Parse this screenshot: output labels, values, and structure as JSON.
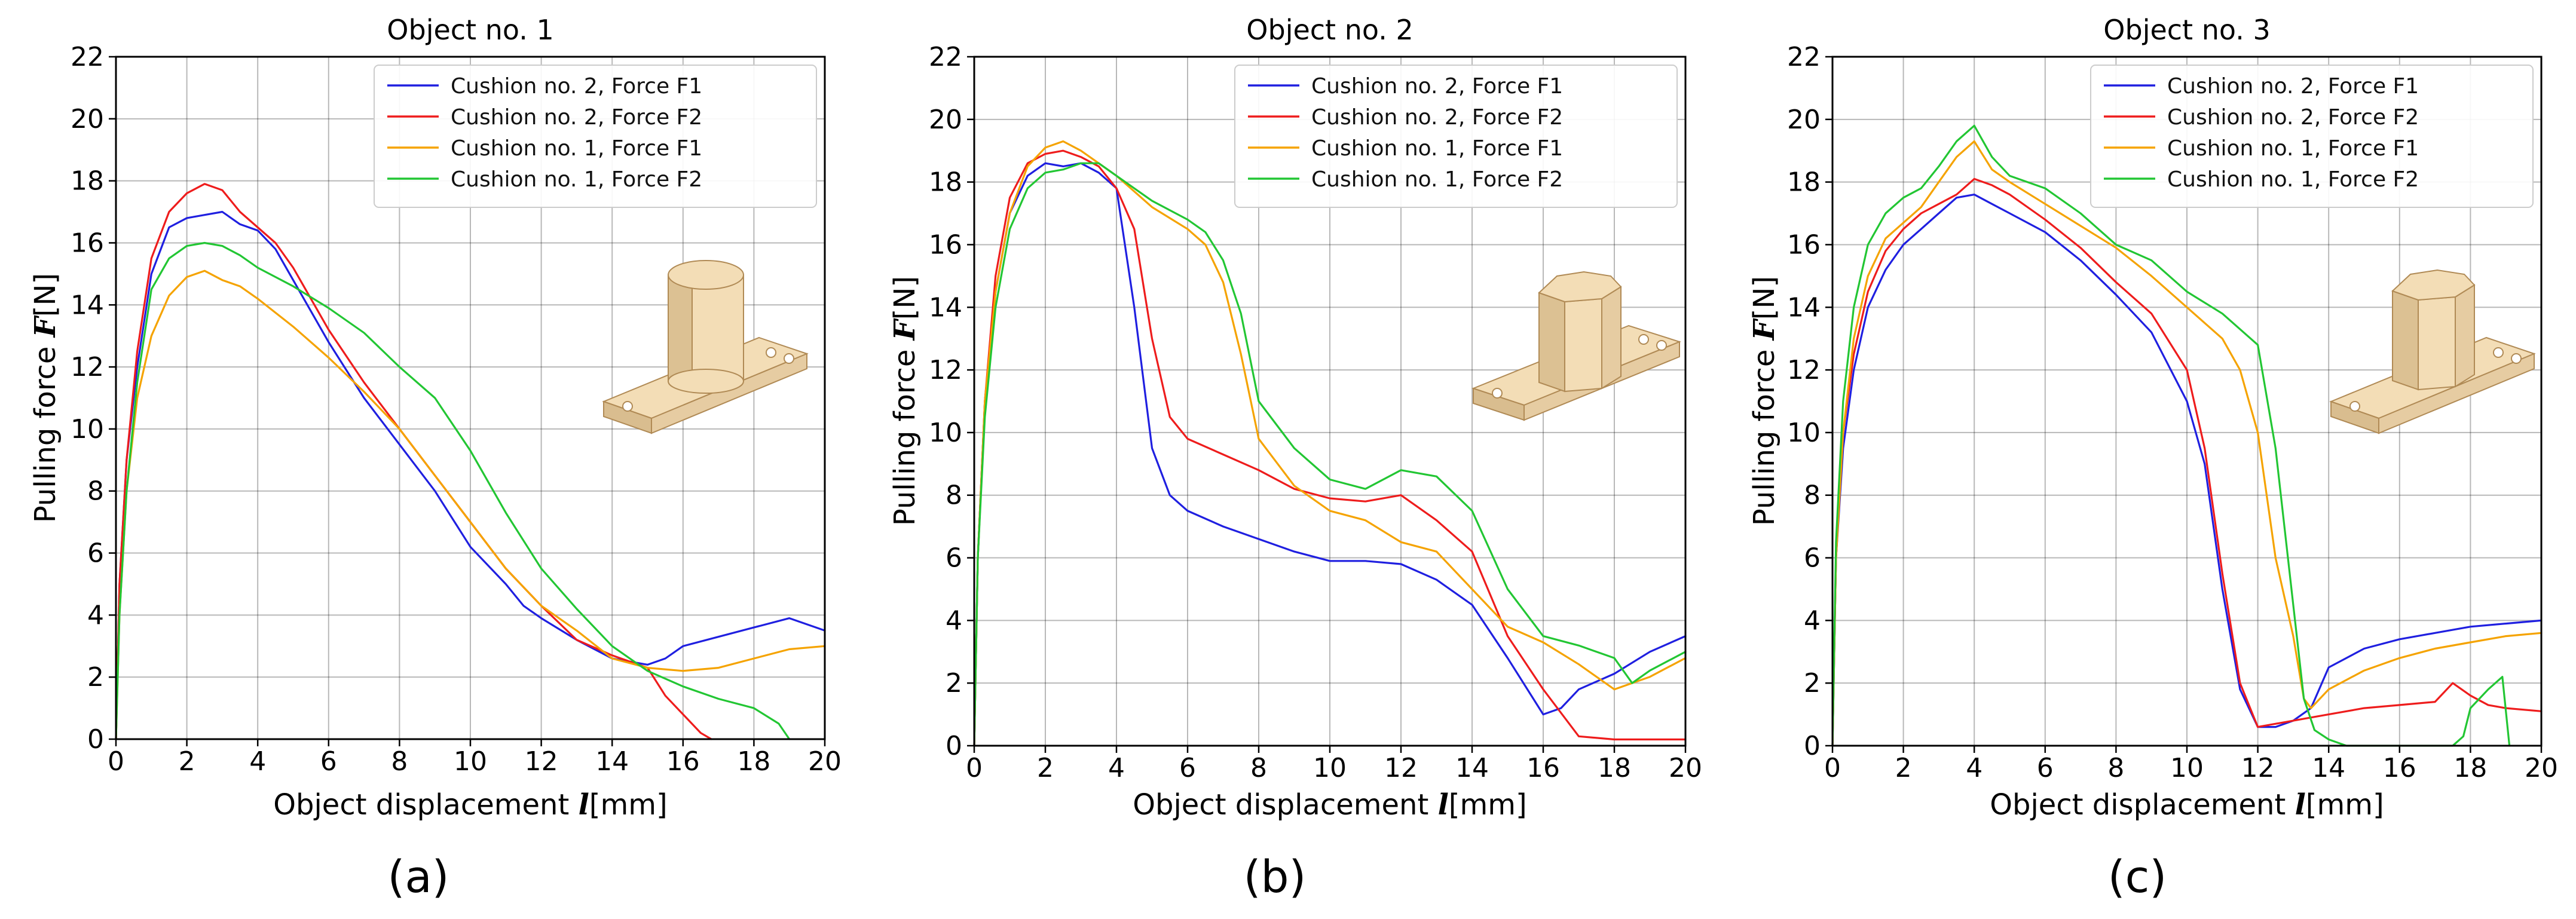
{
  "figure": {
    "captions": [
      "(a)",
      "(b)",
      "(c)"
    ]
  },
  "colors": {
    "blue": "#1f1fe0",
    "red": "#ee1c1c",
    "orange": "#f5a300",
    "green": "#22c633",
    "object_fill": "#f3ddb6",
    "object_stroke": "#b08a55"
  },
  "chart_data": [
    {
      "type": "line",
      "title": "Object no. 1",
      "xlabel": "Object displacement",
      "xvar": "l",
      "xunit": "[mm]",
      "ylabel": "Pulling force",
      "yvar": "F",
      "yunit": "[N]",
      "xlim": [
        0,
        20
      ],
      "ylim": [
        0,
        22
      ],
      "xticks": [
        0,
        2,
        4,
        6,
        8,
        10,
        12,
        14,
        16,
        18,
        20
      ],
      "yticks": [
        0,
        2,
        4,
        6,
        8,
        10,
        12,
        14,
        16,
        18,
        20,
        22
      ],
      "grid": true,
      "legend_position": "top-right",
      "object_icon": "cylinder-object-icon",
      "series": [
        {
          "name": "Cushion no. 2, Force F1",
          "color": "blue",
          "x": [
            0,
            0.1,
            0.3,
            0.6,
            1.0,
            1.5,
            2.0,
            2.5,
            3.0,
            3.5,
            4.0,
            4.5,
            5.0,
            6.0,
            7.0,
            8.0,
            9.0,
            10.0,
            11.0,
            11.5,
            12.0,
            13.0,
            14.0,
            15.0,
            15.5,
            16.0,
            17.0,
            18.0,
            19.0,
            20.0
          ],
          "y": [
            0,
            5,
            9,
            12,
            15,
            16.5,
            16.8,
            16.9,
            17.0,
            16.6,
            16.4,
            15.8,
            14.8,
            12.8,
            11.0,
            9.5,
            8.0,
            6.2,
            5.0,
            4.3,
            3.9,
            3.2,
            2.6,
            2.4,
            2.6,
            3.0,
            3.3,
            3.6,
            3.9,
            3.5
          ]
        },
        {
          "name": "Cushion no. 2, Force F2",
          "color": "red",
          "x": [
            0,
            0.1,
            0.3,
            0.6,
            1.0,
            1.5,
            2.0,
            2.5,
            3.0,
            3.5,
            4.0,
            4.5,
            5.0,
            6.0,
            7.0,
            8.0,
            9.0,
            10.0,
            11.0,
            12.0,
            13.0,
            14.0,
            15.0,
            15.5,
            16.0,
            16.5,
            16.8
          ],
          "y": [
            0,
            5,
            9,
            12.5,
            15.5,
            17.0,
            17.6,
            17.9,
            17.7,
            17.0,
            16.5,
            16.0,
            15.2,
            13.2,
            11.5,
            10.0,
            8.5,
            7.0,
            5.5,
            4.3,
            3.2,
            2.7,
            2.3,
            1.4,
            0.8,
            0.2,
            0
          ]
        },
        {
          "name": "Cushion no. 1, Force F1",
          "color": "orange",
          "x": [
            0,
            0.1,
            0.3,
            0.6,
            1.0,
            1.5,
            2.0,
            2.5,
            3.0,
            3.5,
            4.0,
            5.0,
            6.0,
            7.0,
            8.0,
            9.0,
            10.0,
            11.0,
            12.0,
            13.0,
            14.0,
            15.0,
            16.0,
            17.0,
            18.0,
            19.0,
            20.0
          ],
          "y": [
            0,
            4,
            8,
            11,
            13,
            14.3,
            14.9,
            15.1,
            14.8,
            14.6,
            14.2,
            13.3,
            12.3,
            11.2,
            10.0,
            8.5,
            7.0,
            5.5,
            4.3,
            3.5,
            2.6,
            2.3,
            2.2,
            2.3,
            2.6,
            2.9,
            3.0
          ]
        },
        {
          "name": "Cushion no. 1, Force F2",
          "color": "green",
          "x": [
            0,
            0.1,
            0.3,
            0.6,
            1.0,
            1.5,
            2.0,
            2.5,
            3.0,
            3.5,
            4.0,
            5.0,
            6.0,
            7.0,
            8.0,
            9.0,
            10.0,
            11.0,
            12.0,
            13.0,
            14.0,
            15.0,
            16.0,
            17.0,
            18.0,
            18.7,
            19.0
          ],
          "y": [
            0,
            4,
            8,
            11.5,
            14.5,
            15.5,
            15.9,
            16.0,
            15.9,
            15.6,
            15.2,
            14.6,
            13.9,
            13.1,
            12.0,
            11.0,
            9.3,
            7.3,
            5.5,
            4.2,
            3.0,
            2.2,
            1.7,
            1.3,
            1.0,
            0.5,
            0
          ]
        }
      ]
    },
    {
      "type": "line",
      "title": "Object no. 2",
      "xlabel": "Object displacement",
      "xvar": "l",
      "xunit": "[mm]",
      "ylabel": "Pulling force",
      "yvar": "F",
      "yunit": "[N]",
      "xlim": [
        0,
        20
      ],
      "ylim": [
        0,
        22
      ],
      "xticks": [
        0,
        2,
        4,
        6,
        8,
        10,
        12,
        14,
        16,
        18,
        20
      ],
      "yticks": [
        0,
        2,
        4,
        6,
        8,
        10,
        12,
        14,
        16,
        18,
        20,
        22
      ],
      "grid": true,
      "legend_position": "top-right",
      "object_icon": "octagonal-prism-object-icon",
      "series": [
        {
          "name": "Cushion no. 2, Force F1",
          "color": "blue",
          "x": [
            0,
            0.1,
            0.3,
            0.6,
            1.0,
            1.5,
            2.0,
            2.5,
            3.0,
            3.5,
            4.0,
            4.5,
            5.0,
            5.5,
            6.0,
            7.0,
            8.0,
            9.0,
            10.0,
            11.0,
            12.0,
            13.0,
            14.0,
            15.0,
            16.0,
            16.5,
            17.0,
            18.0,
            19.0,
            20.0
          ],
          "y": [
            0,
            6,
            11,
            14.5,
            17.0,
            18.2,
            18.6,
            18.5,
            18.6,
            18.3,
            17.8,
            14.0,
            9.5,
            8.0,
            7.5,
            7.0,
            6.6,
            6.2,
            5.9,
            5.9,
            5.8,
            5.3,
            4.5,
            2.8,
            1.0,
            1.2,
            1.8,
            2.3,
            3.0,
            3.5
          ]
        },
        {
          "name": "Cushion no. 2, Force F2",
          "color": "red",
          "x": [
            0,
            0.1,
            0.3,
            0.6,
            1.0,
            1.5,
            2.0,
            2.5,
            3.0,
            3.5,
            4.0,
            4.5,
            5.0,
            5.5,
            6.0,
            7.0,
            8.0,
            9.0,
            10.0,
            11.0,
            12.0,
            13.0,
            14.0,
            15.0,
            16.0,
            17.0,
            18.0,
            19.0,
            20.0
          ],
          "y": [
            0,
            6,
            11,
            15,
            17.5,
            18.6,
            18.9,
            19.0,
            18.8,
            18.5,
            17.8,
            16.5,
            13.0,
            10.5,
            9.8,
            9.3,
            8.8,
            8.2,
            7.9,
            7.8,
            8.0,
            7.2,
            6.2,
            3.5,
            1.8,
            0.3,
            0.2,
            0.2,
            0.2
          ]
        },
        {
          "name": "Cushion no. 1, Force F1",
          "color": "orange",
          "x": [
            0,
            0.1,
            0.3,
            0.6,
            1.0,
            1.5,
            2.0,
            2.5,
            3.0,
            3.5,
            4.0,
            5.0,
            6.0,
            6.5,
            7.0,
            7.5,
            8.0,
            9.0,
            10.0,
            11.0,
            12.0,
            13.0,
            14.0,
            15.0,
            16.0,
            17.0,
            18.0,
            19.0,
            20.0
          ],
          "y": [
            0,
            6,
            11,
            14.5,
            17.0,
            18.5,
            19.1,
            19.3,
            19.0,
            18.6,
            18.2,
            17.2,
            16.5,
            16.0,
            14.8,
            12.5,
            9.8,
            8.3,
            7.5,
            7.2,
            6.5,
            6.2,
            5.0,
            3.8,
            3.3,
            2.6,
            1.8,
            2.2,
            2.8
          ]
        },
        {
          "name": "Cushion no. 1, Force F2",
          "color": "green",
          "x": [
            0,
            0.1,
            0.3,
            0.6,
            1.0,
            1.5,
            2.0,
            2.5,
            3.0,
            3.5,
            4.0,
            5.0,
            6.0,
            6.5,
            7.0,
            7.5,
            8.0,
            9.0,
            10.0,
            11.0,
            12.0,
            13.0,
            14.0,
            15.0,
            16.0,
            17.0,
            18.0,
            18.5,
            19.0,
            20.0
          ],
          "y": [
            0,
            6,
            10.5,
            14,
            16.5,
            17.8,
            18.3,
            18.4,
            18.6,
            18.6,
            18.2,
            17.4,
            16.8,
            16.4,
            15.5,
            13.8,
            11.0,
            9.5,
            8.5,
            8.2,
            8.8,
            8.6,
            7.5,
            5.0,
            3.5,
            3.2,
            2.8,
            2.0,
            2.4,
            3.0
          ]
        }
      ]
    },
    {
      "type": "line",
      "title": "Object no. 3",
      "xlabel": "Object displacement",
      "xvar": "l",
      "xunit": "[mm]",
      "ylabel": "Pulling force",
      "yvar": "F",
      "yunit": "[N]",
      "xlim": [
        0,
        20
      ],
      "ylim": [
        0,
        22
      ],
      "xticks": [
        0,
        2,
        4,
        6,
        8,
        10,
        12,
        14,
        16,
        18,
        20
      ],
      "yticks": [
        0,
        2,
        4,
        6,
        8,
        10,
        12,
        14,
        16,
        18,
        20,
        22
      ],
      "grid": true,
      "legend_position": "top-right",
      "object_icon": "octagonal-prism-object-icon",
      "series": [
        {
          "name": "Cushion no. 2, Force F1",
          "color": "blue",
          "x": [
            0,
            0.1,
            0.3,
            0.6,
            1.0,
            1.5,
            2.0,
            2.5,
            3.0,
            3.5,
            4.0,
            4.5,
            5.0,
            6.0,
            7.0,
            8.0,
            9.0,
            10.0,
            10.5,
            11.0,
            11.5,
            12.0,
            12.5,
            13.0,
            13.5,
            14.0,
            15.0,
            16.0,
            17.0,
            18.0,
            19.0,
            20.0
          ],
          "y": [
            0,
            6,
            9.5,
            12,
            14,
            15.2,
            16.0,
            16.5,
            17.0,
            17.5,
            17.6,
            17.3,
            17.0,
            16.4,
            15.5,
            14.4,
            13.2,
            11.0,
            9.0,
            5.0,
            1.8,
            0.6,
            0.6,
            0.8,
            1.2,
            2.5,
            3.1,
            3.4,
            3.6,
            3.8,
            3.9,
            4.0
          ]
        },
        {
          "name": "Cushion no. 2, Force F2",
          "color": "red",
          "x": [
            0,
            0.1,
            0.3,
            0.6,
            1.0,
            1.5,
            2.0,
            2.5,
            3.0,
            3.5,
            4.0,
            4.5,
            5.0,
            6.0,
            7.0,
            8.0,
            9.0,
            10.0,
            10.5,
            11.0,
            11.5,
            12.0,
            13.0,
            14.0,
            15.0,
            16.0,
            17.0,
            17.5,
            18.0,
            18.5,
            19.0,
            20.0
          ],
          "y": [
            0,
            6,
            10,
            12.5,
            14.5,
            15.8,
            16.5,
            17.0,
            17.3,
            17.6,
            18.1,
            17.9,
            17.6,
            16.8,
            15.9,
            14.8,
            13.8,
            12.0,
            9.5,
            5.5,
            2.0,
            0.6,
            0.8,
            1.0,
            1.2,
            1.3,
            1.4,
            2.0,
            1.6,
            1.3,
            1.2,
            1.1
          ]
        },
        {
          "name": "Cushion no. 1, Force F1",
          "color": "orange",
          "x": [
            0,
            0.1,
            0.3,
            0.6,
            1.0,
            1.5,
            2.0,
            2.5,
            3.0,
            3.5,
            4.0,
            4.5,
            5.0,
            6.0,
            7.0,
            8.0,
            9.0,
            10.0,
            11.0,
            11.5,
            12.0,
            12.5,
            13.0,
            13.3,
            13.5,
            14.0,
            15.0,
            16.0,
            17.0,
            18.0,
            19.0,
            20.0
          ],
          "y": [
            0,
            6,
            10,
            13,
            15,
            16.2,
            16.7,
            17.2,
            18.0,
            18.8,
            19.3,
            18.4,
            18.0,
            17.3,
            16.6,
            15.9,
            15.0,
            14.0,
            13.0,
            12.0,
            10.0,
            6.0,
            3.5,
            1.5,
            1.2,
            1.8,
            2.4,
            2.8,
            3.1,
            3.3,
            3.5,
            3.6
          ]
        },
        {
          "name": "Cushion no. 1, Force F2",
          "color": "green",
          "x": [
            0,
            0.1,
            0.3,
            0.6,
            1.0,
            1.5,
            2.0,
            2.5,
            3.0,
            3.5,
            4.0,
            4.5,
            5.0,
            6.0,
            7.0,
            8.0,
            9.0,
            10.0,
            11.0,
            12.0,
            12.5,
            13.0,
            13.3,
            13.6,
            14.0,
            14.5,
            17.5,
            17.8,
            18.0,
            18.5,
            18.9,
            19.1
          ],
          "y": [
            0,
            6.5,
            11,
            14,
            16,
            17.0,
            17.5,
            17.8,
            18.5,
            19.3,
            19.8,
            18.8,
            18.2,
            17.8,
            17.0,
            16.0,
            15.5,
            14.5,
            13.8,
            12.8,
            9.5,
            4.5,
            1.5,
            0.5,
            0.2,
            0,
            0,
            0.3,
            1.2,
            1.8,
            2.2,
            0
          ]
        }
      ]
    }
  ]
}
